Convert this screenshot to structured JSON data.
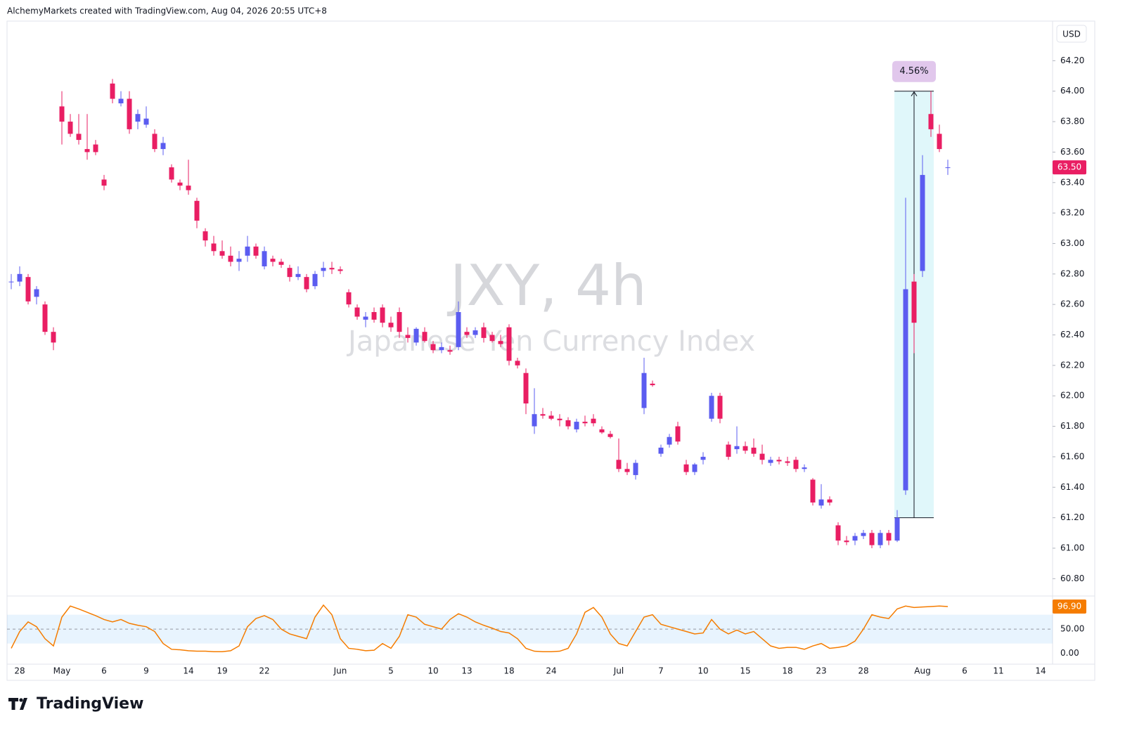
{
  "chart_data": {
    "type": "candlestick",
    "source": "AlchemyMarkets created with TradingView.com, Aug 04, 2026 20:55 UTC+8",
    "title": "JXY, 4h",
    "subtitle": "Japanese Yen Currency Index",
    "currency": "USD",
    "brand": "TradingView",
    "up_color": "#5b5cf0",
    "down_color": "#e91e63",
    "categories": [
      null,
      "28",
      null,
      null,
      null,
      null,
      "May",
      null,
      null,
      null,
      null,
      "6",
      null,
      null,
      null,
      null,
      "9",
      null,
      null,
      null,
      null,
      "14",
      null,
      null,
      null,
      "19",
      null,
      null,
      null,
      null,
      "22",
      null,
      null,
      null,
      null,
      null,
      null,
      null,
      null,
      "Jun",
      null,
      null,
      null,
      null,
      null,
      "5",
      null,
      null,
      null,
      null,
      "10",
      null,
      null,
      null,
      "13",
      null,
      null,
      null,
      null,
      "18",
      null,
      null,
      null,
      null,
      "24",
      null,
      null,
      null,
      null,
      null,
      null,
      null,
      "Jul",
      null,
      null,
      null,
      null,
      "7",
      null,
      null,
      null,
      null,
      "10",
      null,
      null,
      null,
      null,
      "15",
      null,
      null,
      null,
      null,
      "18",
      null,
      null,
      null,
      "23",
      null,
      null,
      null,
      null,
      "28",
      null,
      null,
      null,
      null,
      null,
      null,
      "Aug",
      null,
      null,
      null,
      null,
      "6",
      null,
      null,
      null,
      "11",
      null,
      null,
      null,
      null,
      "14",
      null
    ],
    "open": [
      62.75,
      62.75,
      62.78,
      62.65,
      62.6,
      62.42,
      63.9,
      63.8,
      63.72,
      63.62,
      63.65,
      63.42,
      64.05,
      63.92,
      63.95,
      63.8,
      63.78,
      63.72,
      63.62,
      63.5,
      63.4,
      63.38,
      63.28,
      63.08,
      63.0,
      62.95,
      62.92,
      62.88,
      62.92,
      62.98,
      62.85,
      62.9,
      62.88,
      62.84,
      62.78,
      62.78,
      62.72,
      62.82,
      62.84,
      62.83,
      62.68,
      62.58,
      62.5,
      62.55,
      62.58,
      62.48,
      62.55,
      62.4,
      62.35,
      62.42,
      62.34,
      62.3,
      62.3,
      62.32,
      62.42,
      62.4,
      62.45,
      62.4,
      62.36,
      62.45,
      62.23,
      62.15,
      61.8,
      61.88,
      61.87,
      61.85,
      61.84,
      61.78,
      61.83,
      61.85,
      61.78,
      61.75,
      61.58,
      61.52,
      61.48,
      61.92,
      62.08,
      61.62,
      61.68,
      61.8,
      61.55,
      61.5,
      61.58,
      61.85,
      62.0,
      61.68,
      61.65,
      61.67,
      61.66,
      61.62,
      61.56,
      61.58,
      61.57,
      61.58,
      61.52,
      61.45,
      61.28,
      61.32,
      61.15,
      61.05,
      61.05,
      61.08,
      61.1,
      61.02,
      61.1,
      61.05,
      61.38,
      62.75,
      62.82,
      63.85,
      63.72,
      63.5,
      null,
      null,
      null,
      null,
      null,
      null,
      null,
      null,
      null,
      null,
      null,
      null
    ],
    "high": [
      62.8,
      62.85,
      62.8,
      62.72,
      62.62,
      62.45,
      64.0,
      63.85,
      63.85,
      63.85,
      63.68,
      63.45,
      64.08,
      64.0,
      64.0,
      63.88,
      63.9,
      63.75,
      63.7,
      63.52,
      63.42,
      63.55,
      63.3,
      63.1,
      63.05,
      63.02,
      62.98,
      62.95,
      63.05,
      63.0,
      62.98,
      62.92,
      62.9,
      62.86,
      62.85,
      62.8,
      62.82,
      62.88,
      62.88,
      62.85,
      62.7,
      62.6,
      62.55,
      62.58,
      62.6,
      62.52,
      62.58,
      62.45,
      62.45,
      62.45,
      62.36,
      62.35,
      62.33,
      62.62,
      62.45,
      62.45,
      62.48,
      62.42,
      62.4,
      62.47,
      62.25,
      62.18,
      62.05,
      61.92,
      61.9,
      61.88,
      61.86,
      61.85,
      61.87,
      61.88,
      61.8,
      61.77,
      61.72,
      61.56,
      61.58,
      62.25,
      62.1,
      61.68,
      61.75,
      61.83,
      61.58,
      61.56,
      61.63,
      62.02,
      62.02,
      61.7,
      61.8,
      61.7,
      61.72,
      61.68,
      61.6,
      61.6,
      61.6,
      61.6,
      61.55,
      61.46,
      61.42,
      61.34,
      61.17,
      61.08,
      61.1,
      61.12,
      61.12,
      61.12,
      61.12,
      61.25,
      63.3,
      62.8,
      63.58,
      64.0,
      63.78,
      63.55,
      null,
      null,
      null,
      null,
      null,
      null,
      null,
      null,
      null,
      null,
      null,
      null
    ],
    "low": [
      62.7,
      62.72,
      62.6,
      62.6,
      62.4,
      62.3,
      63.65,
      63.7,
      63.65,
      63.55,
      63.58,
      63.35,
      63.92,
      63.9,
      63.72,
      63.75,
      63.76,
      63.6,
      63.58,
      63.4,
      63.35,
      63.32,
      63.1,
      62.98,
      62.92,
      62.9,
      62.85,
      62.82,
      62.88,
      62.9,
      62.83,
      62.85,
      62.84,
      62.75,
      62.76,
      62.68,
      62.7,
      62.78,
      62.8,
      62.8,
      62.58,
      62.5,
      62.45,
      62.48,
      62.45,
      62.42,
      62.38,
      62.35,
      62.33,
      62.35,
      62.28,
      62.28,
      62.27,
      62.3,
      62.38,
      62.38,
      62.35,
      62.35,
      62.32,
      62.2,
      62.18,
      61.88,
      61.75,
      61.85,
      61.84,
      61.8,
      61.78,
      61.76,
      61.8,
      61.8,
      61.75,
      61.72,
      61.5,
      61.48,
      61.45,
      61.88,
      62.06,
      61.6,
      61.66,
      61.68,
      61.48,
      61.48,
      61.55,
      61.83,
      61.82,
      61.58,
      61.62,
      61.62,
      61.6,
      61.55,
      61.54,
      61.55,
      61.54,
      61.5,
      61.5,
      61.28,
      61.26,
      61.28,
      61.02,
      61.02,
      61.02,
      61.06,
      61.0,
      61.0,
      61.02,
      61.04,
      61.35,
      62.28,
      62.78,
      63.7,
      63.6,
      63.45,
      null,
      null,
      null,
      null,
      null,
      null,
      null,
      null,
      null,
      null,
      null,
      null
    ],
    "close": [
      62.75,
      62.8,
      62.62,
      62.7,
      62.42,
      62.35,
      63.8,
      63.72,
      63.68,
      63.6,
      63.6,
      63.38,
      63.95,
      63.95,
      63.75,
      63.85,
      63.82,
      63.62,
      63.66,
      63.42,
      63.38,
      63.35,
      63.15,
      63.02,
      62.95,
      62.92,
      62.88,
      62.9,
      62.98,
      62.92,
      62.95,
      62.88,
      62.86,
      62.78,
      62.8,
      62.7,
      62.8,
      62.84,
      62.83,
      62.82,
      62.6,
      62.52,
      62.52,
      62.5,
      62.48,
      62.45,
      62.42,
      62.38,
      62.44,
      62.36,
      62.3,
      62.32,
      62.29,
      62.55,
      62.4,
      62.43,
      62.38,
      62.36,
      62.34,
      62.23,
      62.2,
      61.95,
      61.88,
      61.87,
      61.85,
      61.84,
      61.8,
      61.83,
      61.82,
      61.82,
      61.76,
      61.73,
      61.52,
      61.5,
      61.56,
      62.15,
      62.07,
      61.66,
      61.73,
      61.7,
      61.5,
      61.55,
      61.6,
      62.0,
      61.85,
      61.6,
      61.67,
      61.64,
      61.62,
      61.58,
      61.58,
      61.57,
      61.56,
      61.52,
      61.53,
      61.3,
      61.32,
      61.3,
      61.05,
      61.04,
      61.08,
      61.1,
      61.02,
      61.1,
      61.05,
      61.2,
      62.7,
      62.48,
      63.45,
      63.75,
      63.62,
      63.5,
      null,
      null,
      null,
      null,
      null,
      null,
      null,
      null,
      null,
      null,
      null,
      null
    ],
    "ylim": [
      60.7,
      64.46
    ],
    "yticks": [
      {
        "value": 60.8,
        "label": "60.80"
      },
      {
        "value": 61,
        "label": "61.00"
      },
      {
        "value": 61.2,
        "label": "61.20"
      },
      {
        "value": 61.4,
        "label": "61.40"
      },
      {
        "value": 61.6,
        "label": "61.60"
      },
      {
        "value": 61.8,
        "label": "61.80"
      },
      {
        "value": 62,
        "label": "62.00"
      },
      {
        "value": 62.2,
        "label": "62.20"
      },
      {
        "value": 62.4,
        "label": "62.40"
      },
      {
        "value": 62.6,
        "label": "62.60"
      },
      {
        "value": 62.8,
        "label": "62.80"
      },
      {
        "value": 63,
        "label": "63.00"
      },
      {
        "value": 63.2,
        "label": "63.20"
      },
      {
        "value": 63.4,
        "label": "63.40"
      },
      {
        "value": 63.6,
        "label": "63.60"
      },
      {
        "value": 63.8,
        "label": "63.80"
      },
      {
        "value": 64,
        "label": "64.00"
      },
      {
        "value": 64.2,
        "label": "64.20"
      }
    ],
    "last_price": {
      "value": 63.5,
      "label": "63.50"
    },
    "annotation": {
      "from": 61.2,
      "to": 64.0,
      "label": "4.56%"
    },
    "indicator": {
      "type": "line",
      "color": "#f57c00",
      "band": [
        20,
        80
      ],
      "ylim": [
        -23,
        116
      ],
      "yticks": [
        {
          "value": 0,
          "label": "0.00"
        },
        {
          "value": 50,
          "label": "50.00"
        }
      ],
      "last": {
        "value": 96.9,
        "label": "96.90"
      },
      "values": [
        10,
        45,
        65,
        55,
        30,
        15,
        75,
        98,
        92,
        85,
        78,
        70,
        65,
        70,
        62,
        58,
        55,
        45,
        20,
        8,
        7,
        5,
        4,
        4,
        3,
        3,
        5,
        15,
        55,
        72,
        78,
        70,
        50,
        40,
        35,
        30,
        75,
        100,
        80,
        30,
        10,
        8,
        5,
        6,
        20,
        10,
        35,
        80,
        75,
        60,
        55,
        50,
        70,
        82,
        75,
        65,
        58,
        52,
        45,
        42,
        30,
        10,
        4,
        3,
        3,
        4,
        10,
        40,
        85,
        95,
        75,
        40,
        20,
        15,
        45,
        75,
        80,
        60,
        55,
        50,
        45,
        40,
        42,
        70,
        50,
        40,
        48,
        40,
        45,
        30,
        15,
        10,
        12,
        12,
        8,
        15,
        20,
        10,
        12,
        15,
        25,
        50,
        80,
        75,
        72,
        92,
        98,
        95,
        96,
        97,
        98,
        96.9,
        null,
        null,
        null,
        null,
        null,
        null,
        null,
        null,
        null,
        null,
        null,
        null
      ]
    }
  }
}
